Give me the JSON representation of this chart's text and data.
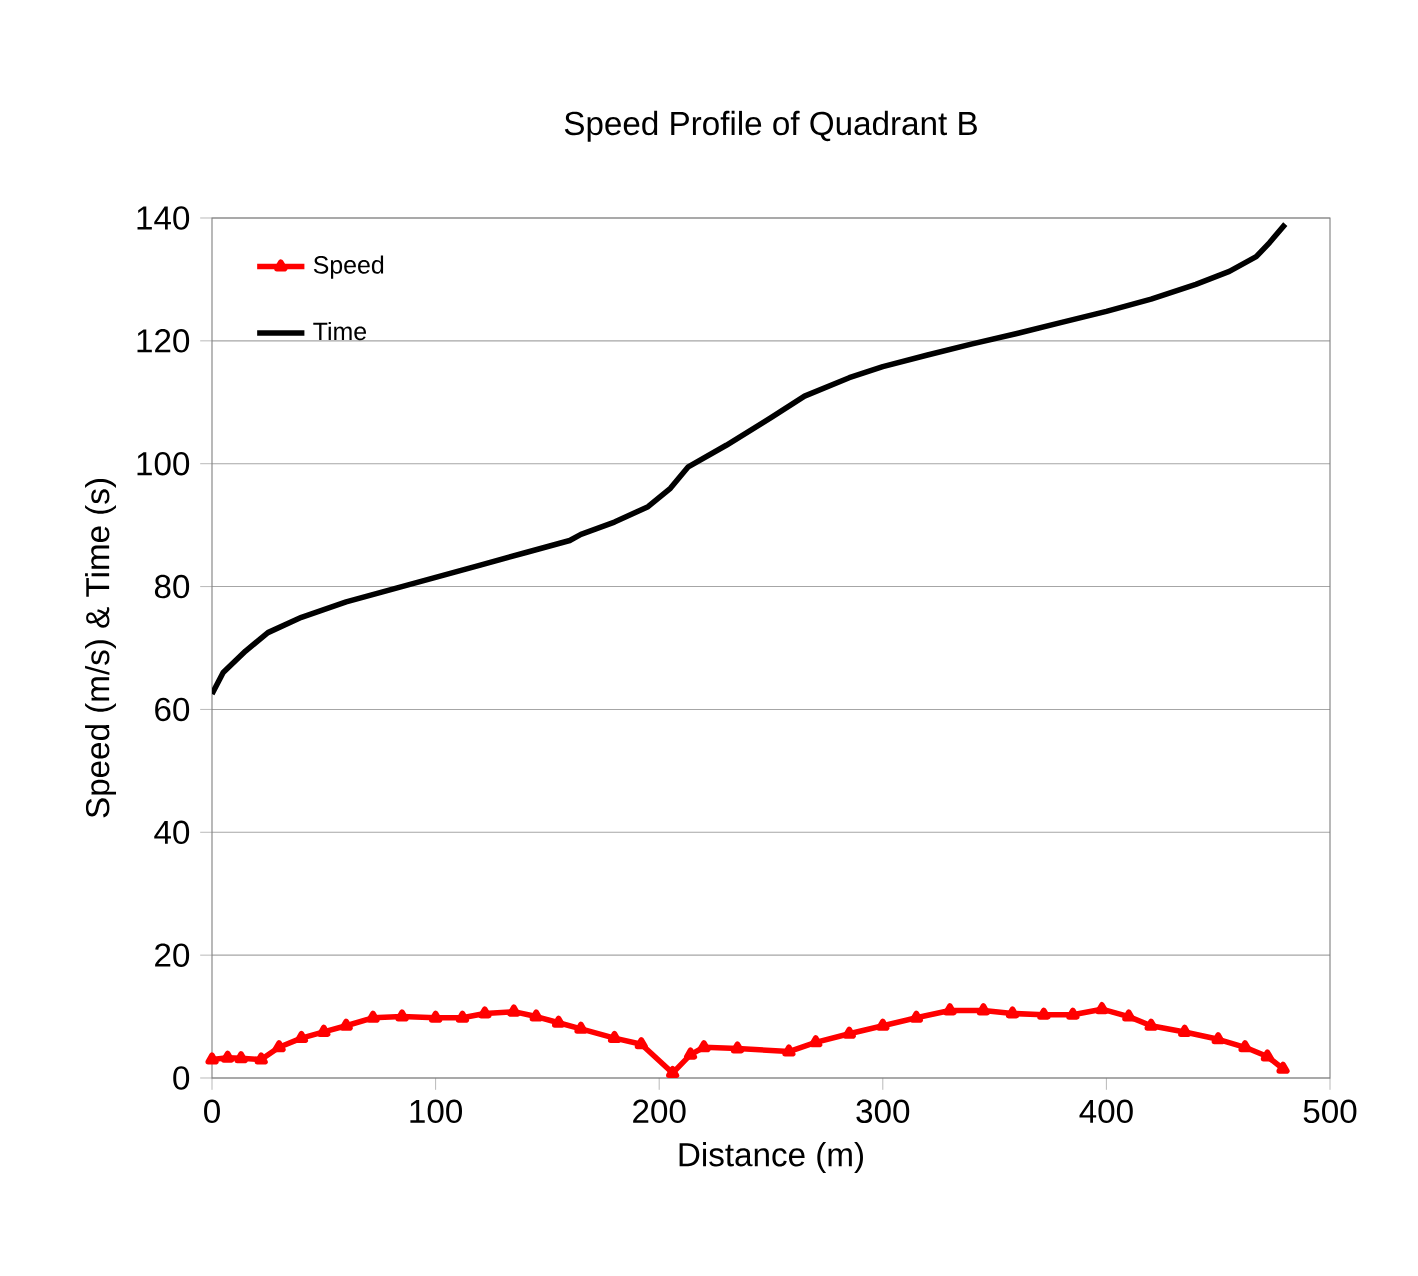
{
  "chart_data": {
    "type": "line",
    "title": "Speed Profile of Quadrant B",
    "xlabel": "Distance (m)",
    "ylabel": "Speed (m/s) & Time (s)",
    "xlim": [
      0,
      500
    ],
    "xticks": [
      0,
      100,
      200,
      300,
      400,
      500
    ],
    "ylim": [
      0,
      140
    ],
    "yticks": [
      0,
      20,
      40,
      60,
      80,
      100,
      120,
      140
    ],
    "grid": "y",
    "legend": "top left",
    "series": [
      {
        "name": "Speed",
        "color": "#ff0000",
        "marker": "triangle",
        "x": [
          0,
          7,
          13,
          22,
          30,
          40,
          50,
          60,
          72,
          85,
          100,
          112,
          122,
          135,
          145,
          155,
          165,
          180,
          192,
          206,
          214,
          220,
          235,
          258,
          270,
          285,
          300,
          315,
          330,
          345,
          358,
          372,
          385,
          398,
          410,
          420,
          435,
          450,
          462,
          472,
          479
        ],
        "values": [
          3,
          3.3,
          3.2,
          3,
          5,
          6.5,
          7.5,
          8.5,
          9.8,
          10,
          9.8,
          9.8,
          10.5,
          10.8,
          10,
          9,
          8,
          6.5,
          5.5,
          0.8,
          3.8,
          5,
          4.8,
          4.3,
          5.8,
          7.2,
          8.5,
          9.8,
          11,
          11,
          10.5,
          10.3,
          10.3,
          11.2,
          10,
          8.5,
          7.5,
          6.3,
          5,
          3.5,
          1.5
        ]
      },
      {
        "name": "Time",
        "color": "#000000",
        "marker": "none",
        "x": [
          0,
          5,
          15,
          25,
          40,
          60,
          80,
          100,
          120,
          140,
          160,
          165,
          180,
          195,
          205,
          213,
          230,
          250,
          265,
          285,
          300,
          320,
          340,
          360,
          380,
          400,
          420,
          440,
          455,
          467,
          473,
          480
        ],
        "values": [
          62.5,
          66,
          69.5,
          72.5,
          75,
          77.5,
          79.5,
          81.5,
          83.5,
          85.5,
          87.5,
          88.5,
          90.5,
          93,
          96,
          99.5,
          103,
          107.5,
          111,
          114,
          115.8,
          117.7,
          119.5,
          121.2,
          123,
          124.8,
          126.8,
          129.2,
          131.3,
          133.7,
          136,
          139
        ]
      }
    ]
  }
}
